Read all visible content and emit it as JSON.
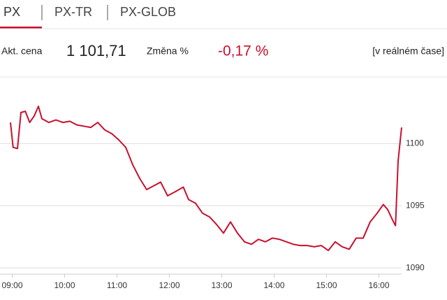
{
  "tabs": [
    "PX",
    "PX-TR",
    "PX-GLOB"
  ],
  "quote": {
    "price_label": "Akt. cena",
    "price": "1 101,71",
    "change_label": "Změna %",
    "change": "-0,17 %",
    "realtime": "[v reálném čase]"
  },
  "chart_data": {
    "type": "line",
    "x": [
      538,
      541,
      546,
      550,
      555,
      560,
      565,
      570,
      574,
      582,
      590,
      598,
      606,
      614,
      622,
      630,
      638,
      646,
      654,
      662,
      670,
      678,
      686,
      694,
      702,
      710,
      718,
      726,
      736,
      742,
      750,
      758,
      766,
      774,
      782,
      790,
      798,
      806,
      814,
      822,
      830,
      838,
      846,
      854,
      862,
      870,
      878,
      886,
      894,
      902,
      910,
      918,
      926,
      934,
      942,
      950,
      958,
      965,
      970,
      976,
      979,
      982,
      986
    ],
    "series": [
      {
        "name": "PX",
        "color": "#c8102e",
        "values": [
          1101.7,
          1099.7,
          1099.6,
          1102.5,
          1102.6,
          1101.7,
          1102.2,
          1103.0,
          1102.0,
          1101.7,
          1101.9,
          1101.7,
          1101.8,
          1101.5,
          1101.4,
          1101.3,
          1101.7,
          1101.1,
          1100.8,
          1100.3,
          1099.7,
          1098.3,
          1097.2,
          1096.3,
          1096.6,
          1096.9,
          1095.8,
          1096.1,
          1096.5,
          1095.5,
          1095.2,
          1094.4,
          1094.1,
          1093.5,
          1092.8,
          1093.7,
          1092.8,
          1092.1,
          1091.9,
          1092.3,
          1092.1,
          1092.4,
          1092.3,
          1092.1,
          1091.9,
          1091.8,
          1091.8,
          1091.7,
          1091.8,
          1091.4,
          1092.1,
          1091.7,
          1091.5,
          1092.4,
          1092.4,
          1093.7,
          1094.4,
          1095.1,
          1094.7,
          1093.8,
          1093.4,
          1098.6,
          1101.3
        ]
      }
    ],
    "xlim": [
      538,
      986
    ],
    "xticks": [
      {
        "value": 540,
        "label": "09:00"
      },
      {
        "value": 600,
        "label": "10:00"
      },
      {
        "value": 660,
        "label": "11:00"
      },
      {
        "value": 720,
        "label": "12:00"
      },
      {
        "value": 780,
        "label": "13:00"
      },
      {
        "value": 840,
        "label": "14:00"
      },
      {
        "value": 900,
        "label": "15:00"
      },
      {
        "value": 960,
        "label": "16:00"
      }
    ],
    "ylim": [
      1089.5,
      1104.8
    ],
    "yticks": [
      1090,
      1095,
      1100
    ],
    "grid": true
  }
}
